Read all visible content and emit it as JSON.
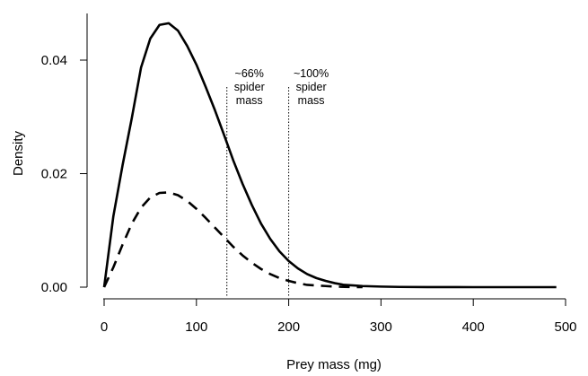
{
  "chart_data": {
    "type": "line",
    "title": "",
    "xlabel": "Prey mass (mg)",
    "ylabel": "Density",
    "xlim": [
      0,
      500
    ],
    "ylim": [
      0,
      0.048
    ],
    "x_ticks": [
      {
        "value": 0,
        "label": "0"
      },
      {
        "value": 100,
        "label": "100"
      },
      {
        "value": 200,
        "label": "200"
      },
      {
        "value": 300,
        "label": "300"
      },
      {
        "value": 400,
        "label": "400"
      },
      {
        "value": 500,
        "label": "500"
      }
    ],
    "y_ticks": [
      {
        "value": 0,
        "label": "0.00"
      },
      {
        "value": 0.02,
        "label": "0.02"
      },
      {
        "value": 0.04,
        "label": "0.04"
      }
    ],
    "grid": false,
    "series": [
      {
        "style": "solid",
        "color": "#000000",
        "x": [
          0,
          10,
          20,
          30,
          40,
          50,
          60,
          70,
          80,
          90,
          100,
          110,
          120,
          130,
          140,
          150,
          160,
          170,
          180,
          190,
          200,
          210,
          220,
          230,
          240,
          250,
          260,
          270,
          280,
          300,
          320,
          350,
          400,
          450,
          490
        ],
        "y": [
          0,
          0.0125,
          0.0215,
          0.0298,
          0.0387,
          0.0438,
          0.0462,
          0.0465,
          0.0452,
          0.0425,
          0.0392,
          0.0353,
          0.0312,
          0.0268,
          0.0223,
          0.0182,
          0.0145,
          0.0112,
          0.0085,
          0.0063,
          0.0046,
          0.0033,
          0.0023,
          0.0016,
          0.0011,
          0.0007,
          0.0004,
          0.0003,
          0.0002,
          0.0001,
          4e-05,
          1e-05,
          0,
          0,
          0
        ]
      },
      {
        "style": "dashed",
        "color": "#000000",
        "x": [
          0,
          10,
          20,
          30,
          40,
          50,
          60,
          70,
          80,
          90,
          100,
          110,
          120,
          130,
          140,
          150,
          160,
          170,
          180,
          190,
          200,
          210,
          220,
          230,
          240,
          250,
          260,
          270,
          280
        ],
        "y": [
          0,
          0.0035,
          0.0075,
          0.0112,
          0.014,
          0.0158,
          0.0166,
          0.0167,
          0.0162,
          0.0152,
          0.0138,
          0.0122,
          0.0105,
          0.0088,
          0.0071,
          0.0056,
          0.0043,
          0.0032,
          0.0023,
          0.0016,
          0.0011,
          0.0007,
          0.0004,
          0.0003,
          0.0002,
          0.0001,
          5e-05,
          2e-05,
          0
        ]
      }
    ],
    "annotations": [
      {
        "x": 133,
        "lines": [
          "~66%",
          "spider",
          "mass"
        ],
        "line_style": "dotted"
      },
      {
        "x": 200,
        "lines": [
          "~100%",
          "spider",
          "mass"
        ],
        "line_style": "dotted"
      }
    ]
  }
}
